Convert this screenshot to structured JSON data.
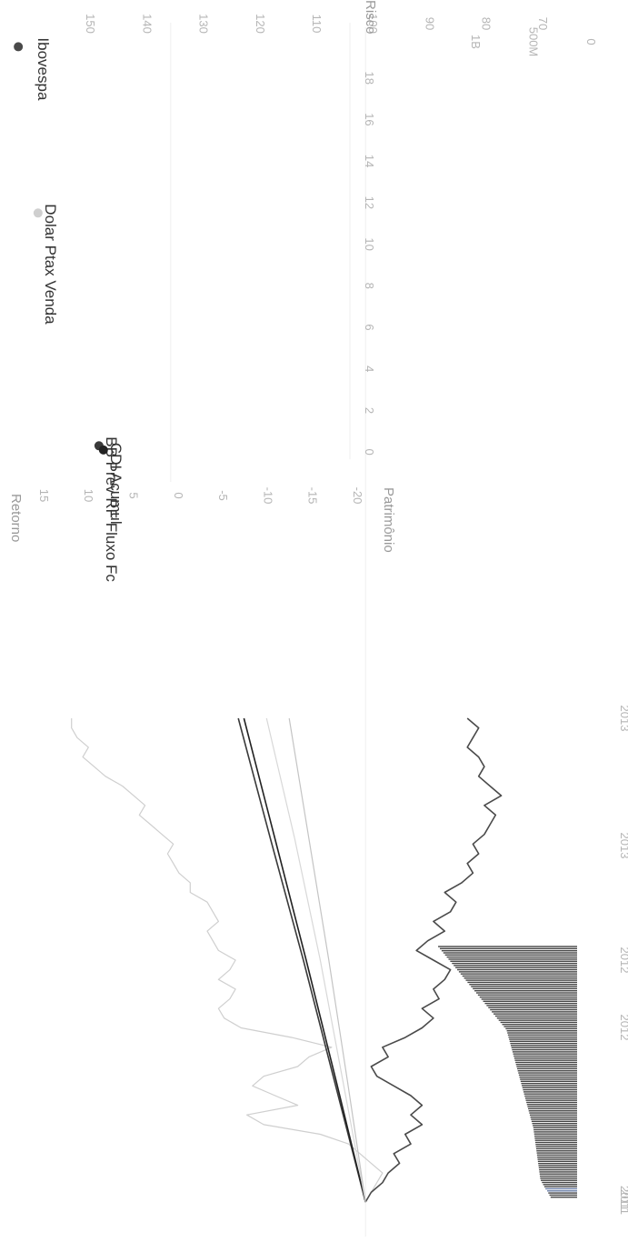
{
  "colors": {
    "background": "#ffffff",
    "grid": "#efefef",
    "tick": "#b5b5b5",
    "ibovespa": "#4a4a4a",
    "dolar": "#cfcfcf",
    "bb_prev": "#3a3a3a",
    "cdi": "#222222",
    "bar": "#444444",
    "bar_highlight": "#6a7fa8"
  },
  "chart_data": [
    {
      "id": "performance",
      "type": "line",
      "ylim": [
        65,
        155
      ],
      "yticks": [
        "150",
        "140",
        "130",
        "120",
        "110",
        "100",
        "90",
        "80",
        "70"
      ],
      "xticks": [
        "2011",
        "2012",
        "2013"
      ],
      "grid": false,
      "series": [
        {
          "key": "dolar",
          "x": [
            0,
            0.02,
            0.04,
            0.06,
            0.08,
            0.1,
            0.12,
            0.14,
            0.16,
            0.18,
            0.2,
            0.22,
            0.24,
            0.26,
            0.28,
            0.3,
            0.32,
            0.34,
            0.36,
            0.38,
            0.4,
            0.42,
            0.44,
            0.46,
            0.48,
            0.5,
            0.52,
            0.54,
            0.56,
            0.58,
            0.6,
            0.62,
            0.64,
            0.66,
            0.68,
            0.7,
            0.72,
            0.74,
            0.76,
            0.78,
            0.8,
            0.82,
            0.84,
            0.86,
            0.88,
            0.9,
            0.92,
            0.94,
            0.96,
            0.98,
            1.0
          ],
          "y": [
            100,
            99,
            98,
            97,
            99,
            101,
            103,
            108,
            118,
            121,
            112,
            116,
            120,
            118,
            112,
            110,
            106,
            113,
            122,
            125,
            126,
            124,
            123,
            126,
            124,
            123,
            126,
            127,
            128,
            126,
            127,
            128,
            131,
            131,
            133,
            134,
            135,
            134,
            136,
            138,
            140,
            139,
            141,
            143,
            146,
            148,
            150,
            149,
            151,
            152,
            152
          ]
        },
        {
          "key": "ibovespa",
          "x": [
            0,
            0.02,
            0.04,
            0.06,
            0.08,
            0.1,
            0.12,
            0.14,
            0.16,
            0.18,
            0.2,
            0.22,
            0.24,
            0.26,
            0.28,
            0.3,
            0.32,
            0.34,
            0.36,
            0.38,
            0.4,
            0.42,
            0.44,
            0.46,
            0.48,
            0.5,
            0.52,
            0.54,
            0.56,
            0.58,
            0.6,
            0.62,
            0.64,
            0.66,
            0.68,
            0.7,
            0.72,
            0.74,
            0.76,
            0.78,
            0.8,
            0.82,
            0.84,
            0.86,
            0.88,
            0.9,
            0.92,
            0.94,
            0.96,
            0.98,
            1.0
          ],
          "y": [
            100,
            99,
            97,
            96,
            94,
            95,
            92,
            93,
            90,
            92,
            90,
            92,
            95,
            98,
            99,
            96,
            97,
            93,
            90,
            88,
            90,
            87,
            88,
            86,
            85,
            88,
            91,
            89,
            86,
            88,
            85,
            84,
            86,
            83,
            81,
            82,
            80,
            81,
            79,
            78,
            77,
            79,
            76,
            78,
            80,
            79,
            80,
            82,
            81,
            80,
            82
          ]
        },
        {
          "key": "bb_prev",
          "x": [
            0,
            0.25,
            0.5,
            0.75,
            1.0
          ],
          "y": [
            100,
            105.5,
            111,
            116.8,
            122.5
          ]
        },
        {
          "key": "cdi",
          "x": [
            0,
            0.25,
            0.5,
            0.75,
            1.0
          ],
          "y": [
            100,
            105.2,
            110.5,
            116,
            121.5
          ]
        },
        {
          "key": "light1",
          "x": [
            0,
            0.25,
            0.5,
            0.75,
            1.0
          ],
          "y": [
            100,
            104,
            108,
            112.5,
            117.5
          ]
        },
        {
          "key": "light2",
          "x": [
            0,
            0.25,
            0.5,
            0.75,
            1.0
          ],
          "y": [
            100,
            103.2,
            106.5,
            110,
            113.5
          ]
        }
      ]
    },
    {
      "id": "risk-return",
      "type": "scatter",
      "ylabel": "Retorno",
      "xlabel": "Risco",
      "xlim": [
        -1,
        20
      ],
      "ylim": [
        -20,
        16
      ],
      "xticks": [
        0,
        2,
        4,
        6,
        8,
        10,
        12,
        14,
        16,
        18
      ],
      "yticks": [
        15,
        10,
        5,
        0,
        -5,
        -10,
        -15,
        -20
      ],
      "ytick_labels": [
        "15",
        "10",
        "5",
        "0",
        "-5",
        "-10",
        "-15",
        "-20"
      ],
      "points": [
        {
          "name": "Ibovespa",
          "x": 19.5,
          "y": 17,
          "key": "ibovespa"
        },
        {
          "name": "Dolar Ptax Venda",
          "x": 11.5,
          "y": 14.8,
          "key": "dolar"
        },
        {
          "name": "BB Prev RF Fluxo Fc",
          "x": 0.3,
          "y": 8.0,
          "key": "bb_prev"
        },
        {
          "name": "CDI Acumul",
          "x": 0.1,
          "y": 7.5,
          "key": "cdi"
        }
      ]
    },
    {
      "id": "patrimonio",
      "type": "bar",
      "title": "Patrimônio",
      "ylim": [
        0,
        1300000000
      ],
      "yticks": [
        {
          "value": 0,
          "label": "0"
        },
        {
          "value": 500000000,
          "label": "500M"
        },
        {
          "value": 1000000000,
          "label": "1B"
        }
      ],
      "xticks": [
        "2011",
        "2012",
        "2013"
      ],
      "values": [
        92,
        96,
        100,
        104,
        110,
        114,
        118,
        122,
        126,
        128,
        129,
        130,
        131,
        132,
        133,
        134,
        135,
        136,
        137,
        138,
        139,
        140,
        141,
        142,
        143,
        144,
        145,
        146,
        147,
        148,
        149,
        150,
        151,
        152,
        154,
        156,
        158,
        160,
        162,
        164,
        166,
        168,
        170,
        172,
        174,
        176,
        178,
        180,
        182,
        184,
        186,
        188,
        190,
        192,
        194,
        196,
        198,
        200,
        202,
        204,
        206,
        208,
        210,
        212,
        214,
        216,
        218,
        220,
        222,
        224,
        226,
        228,
        230,
        232,
        234,
        236,
        238,
        240,
        242,
        244,
        248,
        254,
        260,
        266,
        272,
        278,
        284,
        290,
        296,
        302,
        308,
        314,
        320,
        326,
        332,
        338,
        344,
        350,
        356,
        362,
        368,
        374,
        380,
        386,
        392,
        398,
        404,
        410,
        416,
        422,
        428,
        434,
        440,
        446,
        452,
        458,
        464,
        470,
        476,
        482
      ]
    }
  ]
}
